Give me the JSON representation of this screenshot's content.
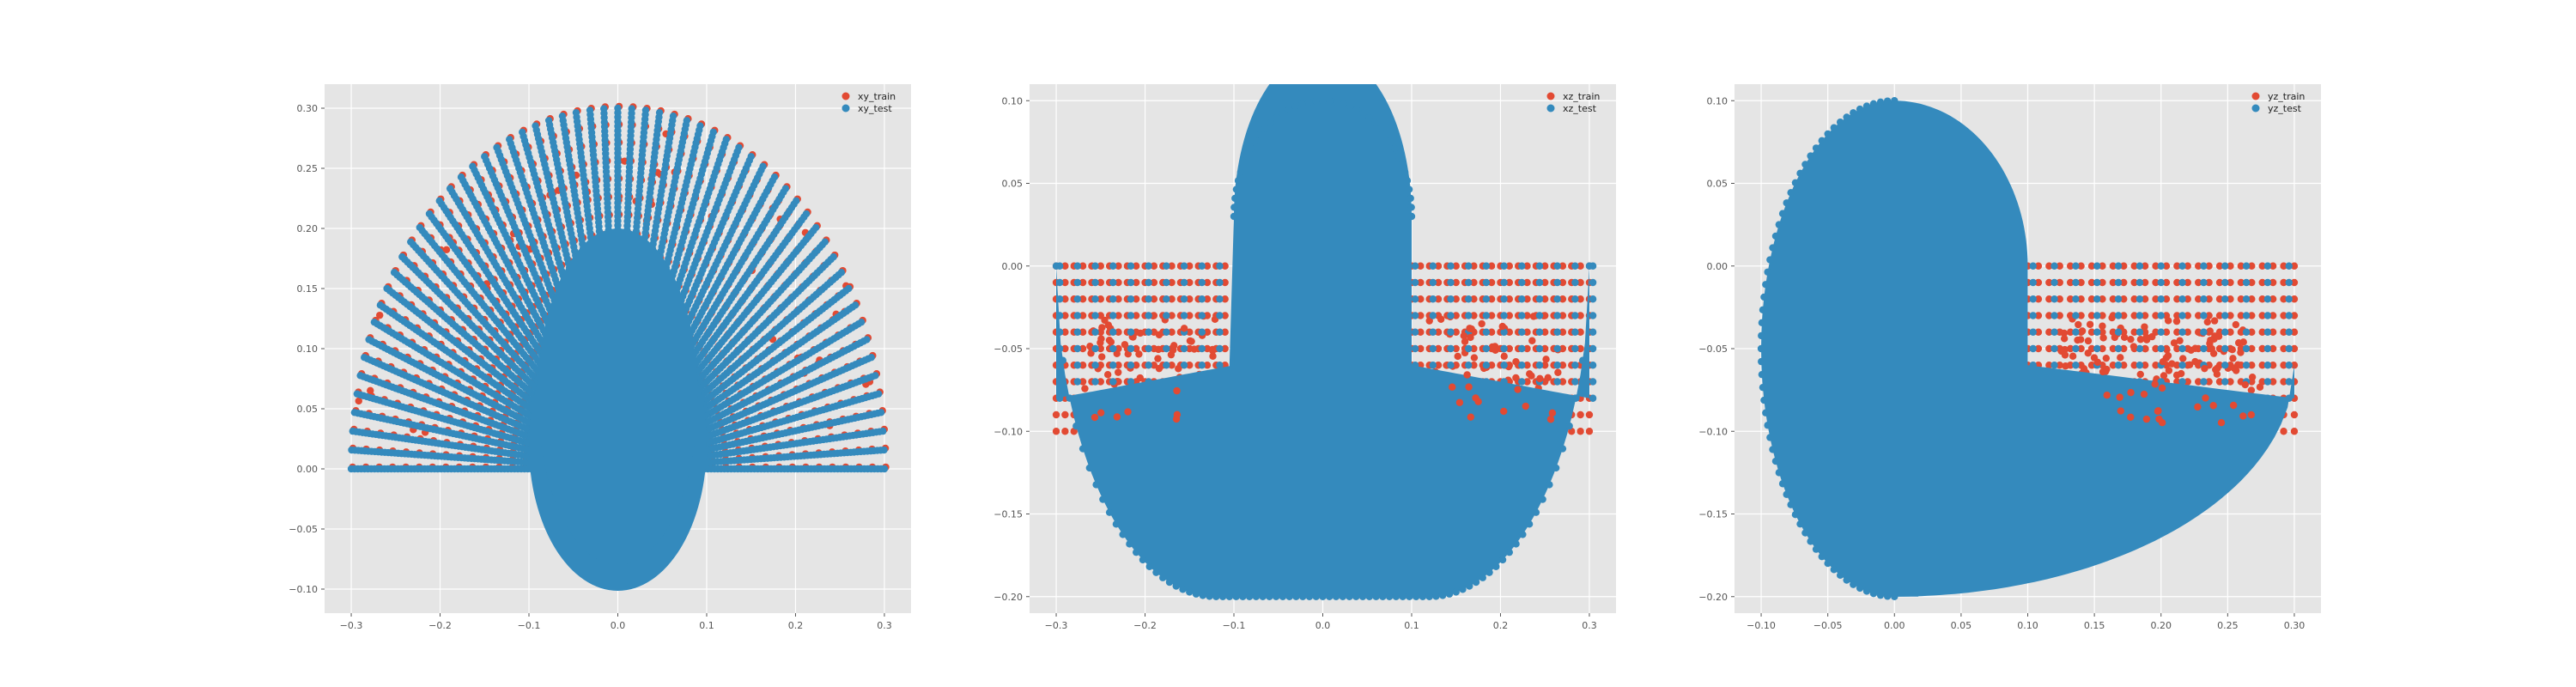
{
  "colors": {
    "background": "#ffffff",
    "axes_face": "#e5e5e5",
    "grid": "#ffffff",
    "train": "#e24a33",
    "test": "#348abd",
    "tick_text": "#555555"
  },
  "chart_data": [
    {
      "type": "scatter",
      "grid": true,
      "legend_position": "top-right",
      "xlim": [
        -0.33,
        0.33
      ],
      "ylim": [
        -0.12,
        0.32
      ],
      "xticks": [
        -0.3,
        -0.2,
        -0.1,
        0.0,
        0.1,
        0.2,
        0.3
      ],
      "xtick_labels": [
        "−0.3",
        "−0.2",
        "−0.1",
        "0.0",
        "0.1",
        "0.2",
        "0.3"
      ],
      "yticks": [
        -0.1,
        -0.05,
        0.0,
        0.05,
        0.1,
        0.15,
        0.2,
        0.25,
        0.3
      ],
      "ytick_labels": [
        "−0.10",
        "−0.05",
        "0.00",
        "0.05",
        "0.10",
        "0.15",
        "0.20",
        "0.25",
        "0.30"
      ],
      "series": [
        {
          "name": "xy_train",
          "color": "#e24a33",
          "points": [
            [
              0.0,
              0.3
            ],
            [
              -0.1,
              0.283
            ],
            [
              0.1,
              0.283
            ],
            [
              -0.2,
              0.224
            ],
            [
              0.2,
              0.224
            ],
            [
              -0.28,
              0.108
            ],
            [
              0.28,
              0.108
            ],
            [
              -0.3,
              0.0
            ],
            [
              0.3,
              0.0
            ],
            [
              0.02,
              0.22
            ],
            [
              -0.05,
              0.25
            ]
          ]
        },
        {
          "name": "xy_test",
          "color": "#348abd",
          "points": [
            [
              0.0,
              0.3
            ],
            [
              -0.3,
              0.0
            ],
            [
              0.3,
              0.0
            ],
            [
              0.0,
              -0.1
            ],
            [
              -0.1,
              0.0
            ],
            [
              0.1,
              0.0
            ],
            [
              0.0,
              0.14
            ]
          ]
        }
      ],
      "legend": [
        {
          "label": "xy_train",
          "color": "#e24a33"
        },
        {
          "label": "xy_test",
          "color": "#348abd"
        }
      ]
    },
    {
      "type": "scatter",
      "grid": true,
      "legend_position": "top-right",
      "xlim": [
        -0.33,
        0.33
      ],
      "ylim": [
        -0.21,
        0.11
      ],
      "xticks": [
        -0.3,
        -0.2,
        -0.1,
        0.0,
        0.1,
        0.2,
        0.3
      ],
      "xtick_labels": [
        "−0.3",
        "−0.2",
        "−0.1",
        "0.0",
        "0.1",
        "0.2",
        "0.3"
      ],
      "yticks": [
        -0.2,
        -0.15,
        -0.1,
        -0.05,
        0.0,
        0.05,
        0.1
      ],
      "ytick_labels": [
        "−0.20",
        "−0.15",
        "−0.10",
        "−0.05",
        "0.00",
        "0.05",
        "0.10"
      ],
      "series": [
        {
          "name": "xz_train",
          "color": "#e24a33",
          "points": [
            [
              -0.3,
              0.0
            ],
            [
              0.3,
              0.0
            ],
            [
              -0.2,
              -0.05
            ],
            [
              0.2,
              -0.05
            ],
            [
              -0.22,
              -0.08
            ],
            [
              0.22,
              -0.08
            ],
            [
              0.0,
              0.1
            ],
            [
              0.0,
              -0.2
            ]
          ]
        },
        {
          "name": "xz_test",
          "color": "#348abd",
          "points": [
            [
              0.0,
              0.1
            ],
            [
              -0.1,
              0.0
            ],
            [
              0.1,
              0.0
            ],
            [
              -0.3,
              0.0
            ],
            [
              0.3,
              0.0
            ],
            [
              0.0,
              -0.2
            ]
          ]
        }
      ],
      "legend": [
        {
          "label": "xz_train",
          "color": "#e24a33"
        },
        {
          "label": "xz_test",
          "color": "#348abd"
        }
      ]
    },
    {
      "type": "scatter",
      "grid": true,
      "legend_position": "top-right",
      "xlim": [
        -0.12,
        0.32
      ],
      "ylim": [
        -0.21,
        0.11
      ],
      "xticks": [
        -0.1,
        -0.05,
        0.0,
        0.05,
        0.1,
        0.15,
        0.2,
        0.25,
        0.3
      ],
      "xtick_labels": [
        "−0.10",
        "−0.05",
        "0.00",
        "0.05",
        "0.10",
        "0.15",
        "0.20",
        "0.25",
        "0.30"
      ],
      "yticks": [
        -0.2,
        -0.15,
        -0.1,
        -0.05,
        0.0,
        0.05,
        0.1
      ],
      "ytick_labels": [
        "−0.20",
        "−0.15",
        "−0.10",
        "−0.05",
        "0.00",
        "0.05",
        "0.10"
      ],
      "series": [
        {
          "name": "yz_train",
          "color": "#e24a33",
          "points": [
            [
              0.3,
              0.0
            ],
            [
              0.2,
              -0.05
            ],
            [
              0.22,
              -0.08
            ],
            [
              0.0,
              0.1
            ],
            [
              0.0,
              -0.2
            ]
          ]
        },
        {
          "name": "yz_test",
          "color": "#348abd",
          "points": [
            [
              0.0,
              0.1
            ],
            [
              -0.1,
              0.0
            ],
            [
              0.1,
              0.0
            ],
            [
              0.3,
              0.0
            ],
            [
              0.0,
              -0.2
            ]
          ]
        }
      ],
      "legend": [
        {
          "label": "yz_train",
          "color": "#e24a33"
        },
        {
          "label": "yz_test",
          "color": "#348abd"
        }
      ]
    }
  ]
}
